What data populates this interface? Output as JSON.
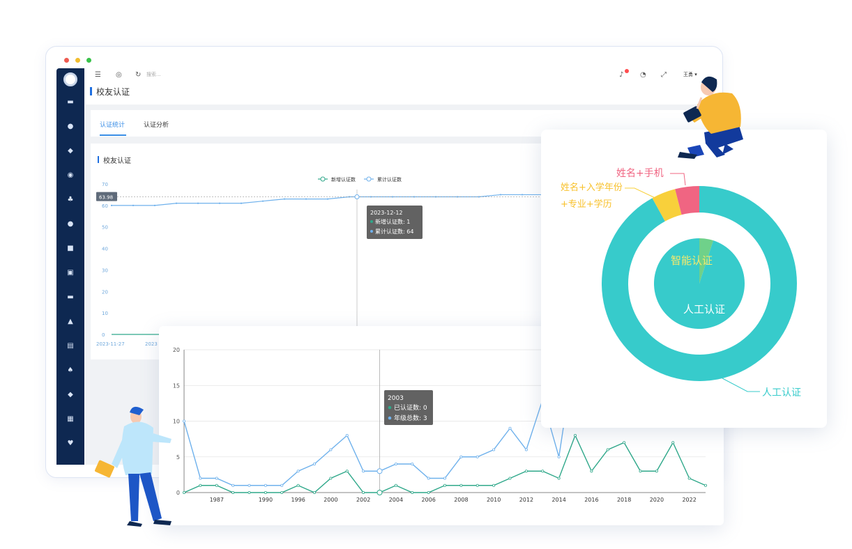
{
  "window": {
    "topbar": {
      "search_placeholder": "搜索...",
      "user_name": "王勇 ▾"
    },
    "page_title": "校友认证",
    "tabs": [
      {
        "label": "认证统计",
        "active": true
      },
      {
        "label": "认证分析",
        "active": false
      }
    ]
  },
  "colors": {
    "accent": "#3a8ee6",
    "sidebar": "#0e2851",
    "teal": "#37cbcb",
    "green": "#2fa88a",
    "blue": "#6fb1ec"
  },
  "chart_data": [
    {
      "type": "line",
      "title": "校友认证",
      "legend": [
        "新增认证数",
        "累计认证数"
      ],
      "legend_position": "top",
      "y_ticks": [
        "70",
        "60",
        "50",
        "40",
        "30",
        "20",
        "10",
        "0"
      ],
      "ylim": [
        0,
        70
      ],
      "x_ticks": [
        "2023-11-27",
        "2023"
      ],
      "crosshair_value": "63.98",
      "series": [
        {
          "name": "新增认证数",
          "values": [
            0,
            0,
            0
          ]
        },
        {
          "name": "累计认证数",
          "values": [
            60,
            60,
            60,
            61,
            61,
            61,
            61,
            62,
            63,
            63,
            63,
            64,
            64,
            64,
            64,
            64,
            64,
            64,
            65,
            65,
            65
          ]
        }
      ],
      "tooltip": {
        "title": "2023-12-12",
        "lines": [
          "新增认证数: 1",
          "累计认证数: 64"
        ]
      }
    },
    {
      "type": "line",
      "x": [
        1985,
        1986,
        1987,
        1988,
        1989,
        1990,
        1995,
        1996,
        1999,
        2000,
        2001,
        2002,
        2003,
        2004,
        2005,
        2006,
        2007,
        2008,
        2009,
        2010,
        2011,
        2012,
        2013,
        2014,
        2015,
        2016,
        2017,
        2018,
        2019,
        2020,
        2021,
        2022,
        2023
      ],
      "x_ticks": [
        "1987",
        "1990",
        "1996",
        "2000",
        "2002",
        "2004",
        "2006",
        "2008",
        "2010",
        "2012",
        "2014",
        "2016",
        "2018",
        "2020",
        "2022"
      ],
      "y_ticks": [
        "20",
        "15",
        "10",
        "5",
        "0"
      ],
      "ylim": [
        0,
        20
      ],
      "series": [
        {
          "name": "年级总数",
          "values": [
            10,
            2,
            2,
            1,
            1,
            1,
            1,
            3,
            4,
            6,
            8,
            3,
            3,
            4,
            4,
            2,
            2,
            5,
            5,
            6,
            9,
            6,
            13,
            5,
            20,
            20,
            20,
            20,
            20,
            20,
            20,
            20,
            20
          ]
        },
        {
          "name": "已认证数",
          "values": [
            0,
            1,
            1,
            0,
            0,
            0,
            0,
            1,
            0,
            2,
            3,
            0,
            0,
            1,
            0,
            0,
            1,
            1,
            1,
            1,
            2,
            3,
            3,
            2,
            8,
            3,
            6,
            7,
            3,
            3,
            7,
            2,
            1
          ]
        }
      ],
      "tooltip": {
        "title": "2003",
        "lines": [
          "已认证数: 0",
          "年级总数: 3"
        ]
      }
    },
    {
      "type": "pie",
      "outer_ring": [
        {
          "name": "人工认证",
          "value": 92,
          "color": "#37cbcb"
        },
        {
          "name": "姓名+入学年份+专业+学历",
          "value": 4,
          "color": "#f8d03b"
        },
        {
          "name": "姓名+手机",
          "value": 4,
          "color": "#f06582"
        }
      ],
      "inner_pie": [
        {
          "name": "人工认证",
          "value": 95,
          "color": "#37cbcb"
        },
        {
          "name": "智能认证",
          "value": 5,
          "color": "#6fd18a"
        }
      ],
      "labels": {
        "name_phone": "姓名+手机",
        "name_year_1": "姓名+入学年份",
        "name_year_2": "+专业+学历",
        "manual_outer": "人工认证",
        "smart_inner": "智能认证",
        "manual_inner": "人工认证"
      }
    }
  ]
}
